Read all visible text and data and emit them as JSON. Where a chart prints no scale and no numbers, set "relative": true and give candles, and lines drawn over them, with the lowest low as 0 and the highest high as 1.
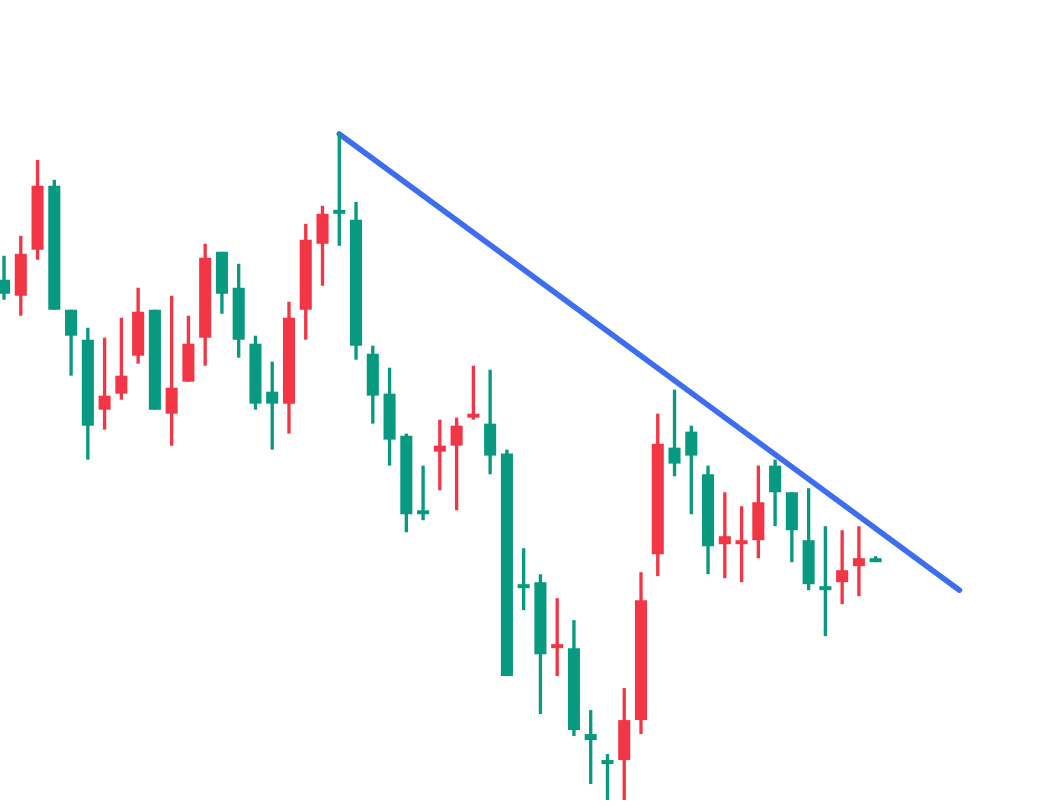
{
  "chart_data": {
    "type": "candlestick",
    "relative": true,
    "categories": [
      null,
      null,
      null,
      null,
      null,
      null,
      null,
      null,
      null,
      null,
      null,
      null,
      null,
      null,
      null,
      null,
      null,
      null,
      null,
      null,
      null,
      null,
      null,
      null,
      null,
      null,
      null,
      null,
      null,
      null,
      null,
      null,
      null,
      null,
      null,
      null,
      null,
      null,
      null,
      null,
      null,
      null,
      null,
      null,
      null,
      null,
      null,
      null,
      null,
      null,
      null,
      null,
      null,
      null,
      null,
      null,
      null,
      null
    ],
    "ohlc": [
      [
        0.781,
        0.817,
        0.751,
        0.76
      ],
      [
        0.757,
        0.847,
        0.727,
        0.82
      ],
      [
        0.826,
        0.961,
        0.811,
        0.922
      ],
      [
        0.922,
        0.931,
        0.736,
        0.736
      ],
      [
        0.736,
        0.736,
        0.637,
        0.697
      ],
      [
        0.691,
        0.709,
        0.511,
        0.562
      ],
      [
        0.586,
        0.694,
        0.556,
        0.607
      ],
      [
        0.61,
        0.724,
        0.601,
        0.637
      ],
      [
        0.667,
        0.769,
        0.655,
        0.733
      ],
      [
        0.736,
        0.736,
        0.586,
        0.586
      ],
      [
        0.58,
        0.757,
        0.532,
        0.619
      ],
      [
        0.628,
        0.727,
        0.628,
        0.685
      ],
      [
        0.694,
        0.835,
        0.652,
        0.814
      ],
      [
        0.823,
        0.823,
        0.73,
        0.76
      ],
      [
        0.769,
        0.805,
        0.664,
        0.691
      ],
      [
        0.685,
        0.697,
        0.586,
        0.595
      ],
      [
        0.613,
        0.658,
        0.526,
        0.595
      ],
      [
        0.595,
        0.748,
        0.55,
        0.724
      ],
      [
        0.736,
        0.865,
        0.691,
        0.841
      ],
      [
        0.835,
        0.892,
        0.772,
        0.88
      ],
      [
        0.886,
        1.0,
        0.832,
        0.88
      ],
      [
        0.871,
        0.898,
        0.661,
        0.682
      ],
      [
        0.67,
        0.682,
        0.565,
        0.607
      ],
      [
        0.61,
        0.649,
        0.502,
        0.541
      ],
      [
        0.547,
        0.55,
        0.402,
        0.429
      ],
      [
        0.435,
        0.502,
        0.42,
        0.429
      ],
      [
        0.523,
        0.571,
        0.465,
        0.532
      ],
      [
        0.532,
        0.574,
        0.435,
        0.562
      ],
      [
        0.574,
        0.652,
        0.571,
        0.58
      ],
      [
        0.565,
        0.646,
        0.489,
        0.517
      ],
      [
        0.52,
        0.526,
        0.186,
        0.186
      ],
      [
        0.324,
        0.378,
        0.285,
        0.318
      ],
      [
        0.327,
        0.339,
        0.129,
        0.219
      ],
      [
        0.228,
        0.303,
        0.186,
        0.234
      ],
      [
        0.228,
        0.27,
        0.096,
        0.105
      ],
      [
        0.099,
        0.135,
        0.024,
        0.09
      ],
      [
        0.06,
        0.069,
        0.0,
        0.054
      ],
      [
        0.06,
        0.168,
        0.0,
        0.12
      ],
      [
        0.12,
        0.342,
        0.099,
        0.3
      ],
      [
        0.369,
        0.58,
        0.336,
        0.535
      ],
      [
        0.529,
        0.616,
        0.486,
        0.505
      ],
      [
        0.553,
        0.562,
        0.429,
        0.517
      ],
      [
        0.489,
        0.502,
        0.339,
        0.381
      ],
      [
        0.384,
        0.462,
        0.333,
        0.396
      ],
      [
        0.384,
        0.441,
        0.327,
        0.39
      ],
      [
        0.39,
        0.502,
        0.363,
        0.447
      ],
      [
        0.502,
        0.511,
        0.411,
        0.462
      ],
      [
        0.462,
        0.462,
        0.357,
        0.405
      ],
      [
        0.39,
        0.468,
        0.315,
        0.324
      ],
      [
        0.321,
        0.411,
        0.246,
        0.315
      ],
      [
        0.327,
        0.405,
        0.294,
        0.345
      ],
      [
        0.351,
        0.411,
        0.306,
        0.363
      ],
      [
        0.36,
        0.366,
        0.357,
        0.357
      ],
      null,
      null,
      null,
      null,
      null
    ],
    "colors": [
      "#089981",
      "#f23645",
      "#f23645",
      "#089981",
      "#089981",
      "#089981",
      "#f23645",
      "#f23645",
      "#f23645",
      "#089981",
      "#f23645",
      "#f23645",
      "#f23645",
      "#089981",
      "#089981",
      "#089981",
      "#089981",
      "#f23645",
      "#f23645",
      "#f23645",
      "#089981",
      "#089981",
      "#089981",
      "#089981",
      "#089981",
      "#089981",
      "#f23645",
      "#f23645",
      "#f23645",
      "#089981",
      "#089981",
      "#089981",
      "#089981",
      "#f23645",
      "#089981",
      "#089981",
      "#089981",
      "#f23645",
      "#f23645",
      "#f23645",
      "#089981",
      "#089981",
      "#089981",
      "#f23645",
      "#f23645",
      "#f23645",
      "#089981",
      "#089981",
      "#089981",
      "#089981",
      "#f23645",
      "#f23645",
      "#089981",
      null,
      null,
      null,
      null,
      null
    ],
    "series": [
      {
        "type": "line",
        "values": [
          null,
          null,
          null,
          null,
          null,
          null,
          null,
          null,
          null,
          null,
          null,
          null,
          null,
          null,
          null,
          null,
          null,
          null,
          null,
          null,
          1.0,
          null,
          null,
          null,
          null,
          null,
          null,
          null,
          null,
          null,
          null,
          null,
          null,
          null,
          null,
          null,
          null,
          null,
          null,
          null,
          null,
          null,
          null,
          null,
          null,
          null,
          null,
          null,
          null,
          null,
          null,
          null,
          null,
          null,
          null,
          null,
          null,
          0.315
        ],
        "color": "#3d6ef2"
      }
    ]
  }
}
